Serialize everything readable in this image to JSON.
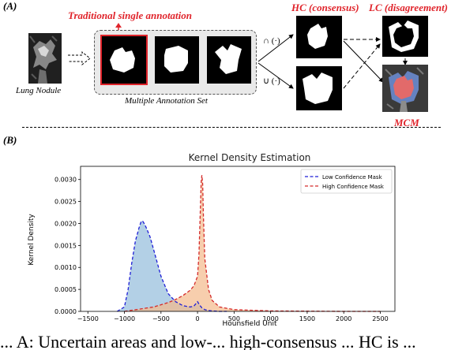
{
  "panel_a": {
    "letter": "(A)",
    "traditional_label": "Traditional single annotation",
    "nodule_label": "Lung Nodule",
    "set_label": "Multiple Annotation Set",
    "intersection_op": "∩ (·)",
    "union_op": "∪ (·)",
    "hc_label": "HC (consensus)",
    "lc_label": "LC (disagreement)",
    "mcm_label": "MCM"
  },
  "panel_b": {
    "letter": "(B)"
  },
  "caption": "... A: Uncertain areas and low-... high-consensus ... HC is ...",
  "colors": {
    "accent_red": "#e0242b",
    "low_series": "#1f1fd6",
    "high_series": "#d42a2a",
    "low_fill": "#a6c8e2",
    "high_fill": "#f4b98a"
  },
  "chart_data": {
    "type": "area",
    "title": "Kernel Density Estimation",
    "xlabel": "Hounsfield Unit",
    "ylabel": "Kernel Density",
    "xlim": [
      -1600,
      2700
    ],
    "ylim": [
      0,
      0.0033
    ],
    "xticks": [
      -1500,
      -1000,
      -500,
      0,
      500,
      1000,
      1500,
      2000,
      2500
    ],
    "yticks": [
      0.0,
      0.0005,
      0.001,
      0.0015,
      0.002,
      0.0025,
      0.003
    ],
    "ytick_labels": [
      "0.0000",
      "0.0005",
      "0.0010",
      "0.0015",
      "0.0020",
      "0.0025",
      "0.0030"
    ],
    "legend_position": "upper-right",
    "grid": false,
    "series": [
      {
        "name": "Low Confidence Mask",
        "line_style": "dashed",
        "x": [
          -1100,
          -1000,
          -950,
          -900,
          -850,
          -800,
          -770,
          -750,
          -730,
          -700,
          -650,
          -600,
          -550,
          -500,
          -450,
          -400,
          -300,
          -200,
          -100,
          -50,
          0,
          30,
          60,
          100,
          150,
          200,
          300,
          400
        ],
        "values": [
          0.0,
          0.0001,
          0.0005,
          0.0011,
          0.0016,
          0.0019,
          0.00205,
          0.00205,
          0.002,
          0.0019,
          0.0017,
          0.0014,
          0.0011,
          0.0008,
          0.0006,
          0.0004,
          0.00022,
          0.00013,
          0.0001,
          0.00012,
          0.00022,
          0.00014,
          8e-05,
          4e-05,
          2e-05,
          1e-05,
          0.0,
          0.0
        ]
      },
      {
        "name": "High Confidence Mask",
        "line_style": "dashed",
        "x": [
          -1000,
          -800,
          -600,
          -500,
          -400,
          -300,
          -200,
          -100,
          -50,
          0,
          20,
          40,
          50,
          60,
          70,
          80,
          100,
          150,
          200,
          300,
          500,
          1000,
          2000,
          2500
        ],
        "values": [
          0.0,
          5e-05,
          0.0001,
          0.00015,
          0.0002,
          0.00027,
          0.00036,
          0.00048,
          0.00058,
          0.0008,
          0.0013,
          0.0024,
          0.00295,
          0.0031,
          0.0029,
          0.0022,
          0.0012,
          0.0005,
          0.00025,
          0.0001,
          4e-05,
          1e-05,
          0.0,
          0.0
        ]
      }
    ]
  }
}
